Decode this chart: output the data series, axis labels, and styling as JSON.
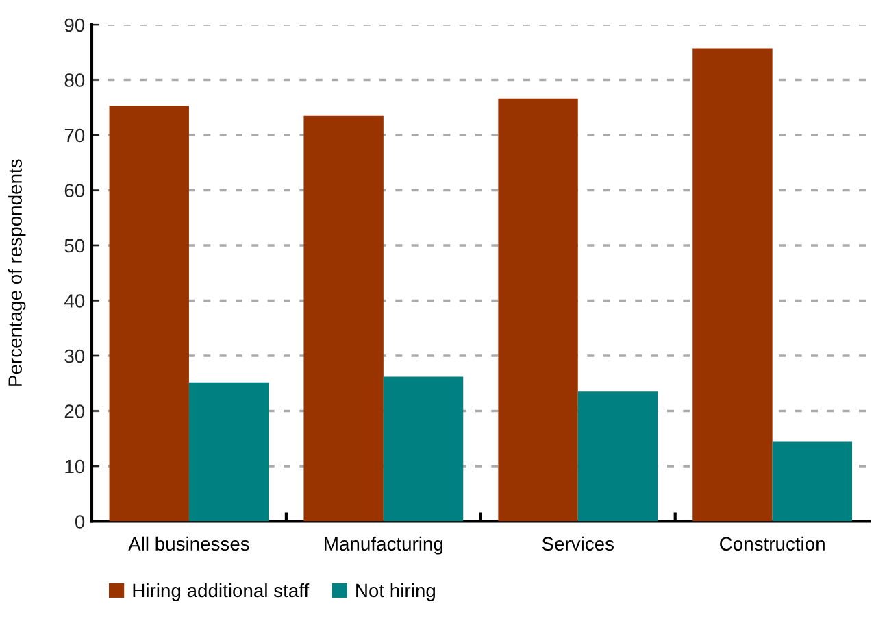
{
  "chart_data": {
    "type": "bar",
    "ylabel": "Percentage of respondents",
    "categories": [
      "All businesses",
      "Manufacturing",
      "Services",
      "Construction"
    ],
    "series": [
      {
        "name": "Hiring additional staff",
        "color": "#993300",
        "values": [
          75.3,
          73.5,
          76.6,
          85.7
        ]
      },
      {
        "name": "Not hiring",
        "color": "#008080",
        "values": [
          25.2,
          26.2,
          23.5,
          14.4
        ]
      }
    ],
    "ylim": [
      0,
      90
    ],
    "yticks": [
      0,
      10,
      20,
      30,
      40,
      50,
      60,
      70,
      80,
      90
    ],
    "grid": "y",
    "legend": "bottom"
  }
}
